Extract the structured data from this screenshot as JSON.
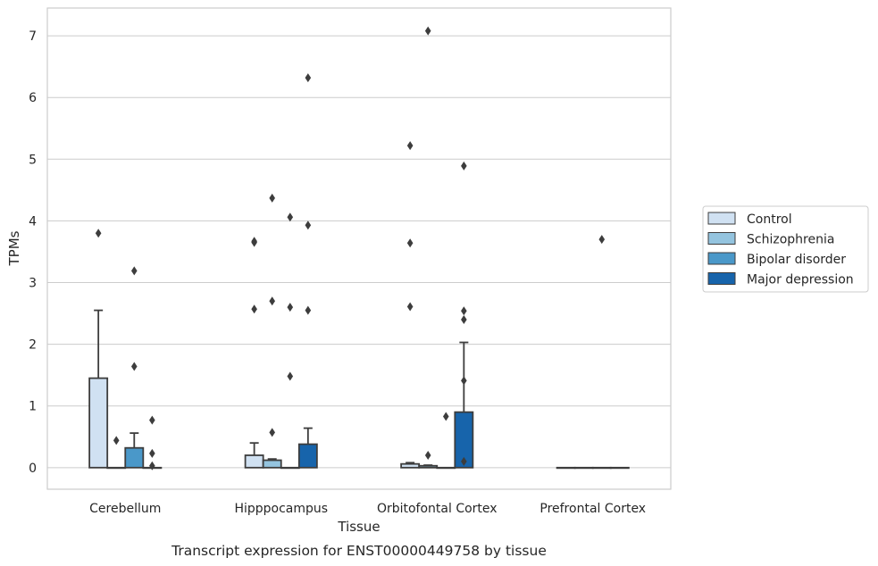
{
  "caption": "Transcript expression for ENST00000449758 by tissue",
  "colors": {
    "Control": "#d0e1f2",
    "Schizophrenia": "#94c4df",
    "Bipolar disorder": "#4a98c9",
    "Major depression": "#1764ab"
  },
  "chart_data": {
    "type": "bar",
    "xlabel": "Tissue",
    "ylabel": "TPMs",
    "ylim": [
      -0.35,
      7.45
    ],
    "yticks": [
      0,
      1,
      2,
      3,
      4,
      5,
      6,
      7
    ],
    "grid": true,
    "legend_position": "right",
    "categories": [
      "Cerebellum",
      "Hipppocampus",
      "Orbitofontal Cortex",
      "Prefrontal Cortex"
    ],
    "series": [
      {
        "name": "Control",
        "values": [
          1.45,
          0.2,
          0.06,
          0.0
        ],
        "error_upper": [
          2.55,
          0.4,
          0.08,
          0.0
        ],
        "outliers": [
          [
            3.8
          ],
          [
            3.67,
            3.65,
            2.57
          ],
          [
            5.22,
            3.64,
            2.61
          ],
          []
        ]
      },
      {
        "name": "Schizophrenia",
        "values": [
          0.0,
          0.12,
          0.03,
          0.0
        ],
        "error_upper": [
          0.0,
          0.14,
          0.04,
          0.0
        ],
        "outliers": [
          [
            0.44
          ],
          [
            4.37,
            2.7,
            0.57
          ],
          [
            7.08,
            0.2
          ],
          []
        ]
      },
      {
        "name": "Bipolar disorder",
        "values": [
          0.32,
          0.0,
          0.0,
          0.0
        ],
        "error_upper": [
          0.56,
          0.0,
          0.0,
          0.0
        ],
        "outliers": [
          [
            3.19,
            1.64
          ],
          [
            4.06,
            2.6,
            1.48
          ],
          [
            0.83
          ],
          [
            3.7
          ]
        ]
      },
      {
        "name": "Major depression",
        "values": [
          0.0,
          0.38,
          0.9,
          0.0
        ],
        "error_upper": [
          0.0,
          0.64,
          2.03,
          0.0
        ],
        "outliers": [
          [
            0.77,
            0.23,
            0.03
          ],
          [
            6.32,
            3.93,
            2.55
          ],
          [
            4.89,
            2.54,
            2.4,
            1.41,
            0.1
          ],
          []
        ]
      }
    ]
  }
}
